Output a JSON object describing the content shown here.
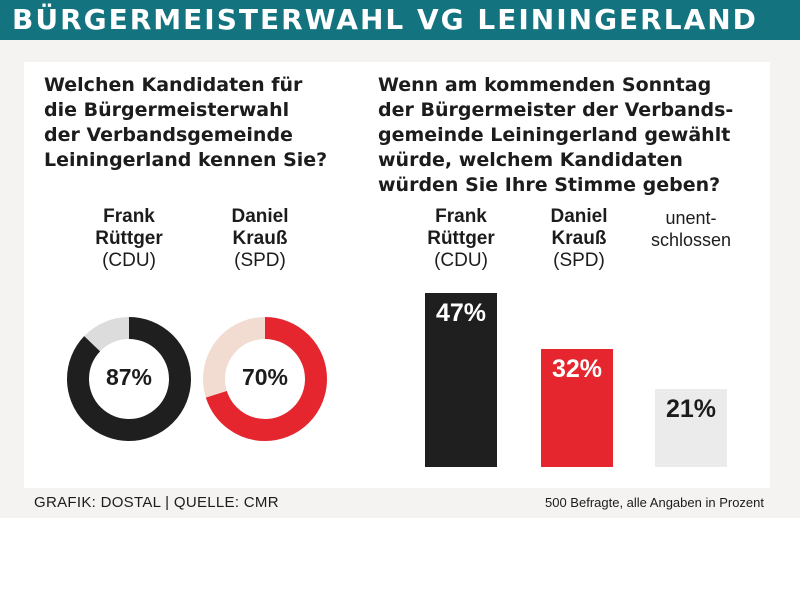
{
  "header": {
    "title": "BÜRGERMEISTERWAHL VG LEININGERLAND"
  },
  "colors": {
    "banner": "#13737f",
    "cdu": "#1f1f1f",
    "spd": "#e5262f",
    "undecided": "#ebebeb",
    "cdu_rest": "#dcdcdc",
    "spd_rest": "#f2dcd2"
  },
  "chart_data": [
    {
      "type": "pie",
      "title": "Welchen Kandidaten für\ndie Bürgermeisterwahl\nder Verbandsgemeinde\nLeiningerland kennen Sie?",
      "series": [
        {
          "name": "Frank\nRüttger",
          "party": "(CDU)",
          "value": 87,
          "label": "87%"
        },
        {
          "name": "Daniel\nKrauß",
          "party": "(SPD)",
          "value": 70,
          "label": "70%"
        }
      ]
    },
    {
      "type": "bar",
      "title": "Wenn am kommenden Sonntag\nder Bürgermeister der Verbands-\ngemeinde Leiningerland gewählt\nwürde, welchem Kandidaten\nwürden Sie Ihre Stimme geben?",
      "categories": [
        "Frank\nRüttger",
        "Daniel\nKrauß",
        "unent-\nschlossen"
      ],
      "parties": [
        "(CDU)",
        "(SPD)",
        ""
      ],
      "values": [
        47,
        32,
        21
      ],
      "labels": [
        "47%",
        "32%",
        "21%"
      ]
    }
  ],
  "footer": {
    "credit": "GRAFIK: DOSTAL | QUELLE: CMR",
    "note": "500 Befragte, alle Angaben in Prozent"
  }
}
